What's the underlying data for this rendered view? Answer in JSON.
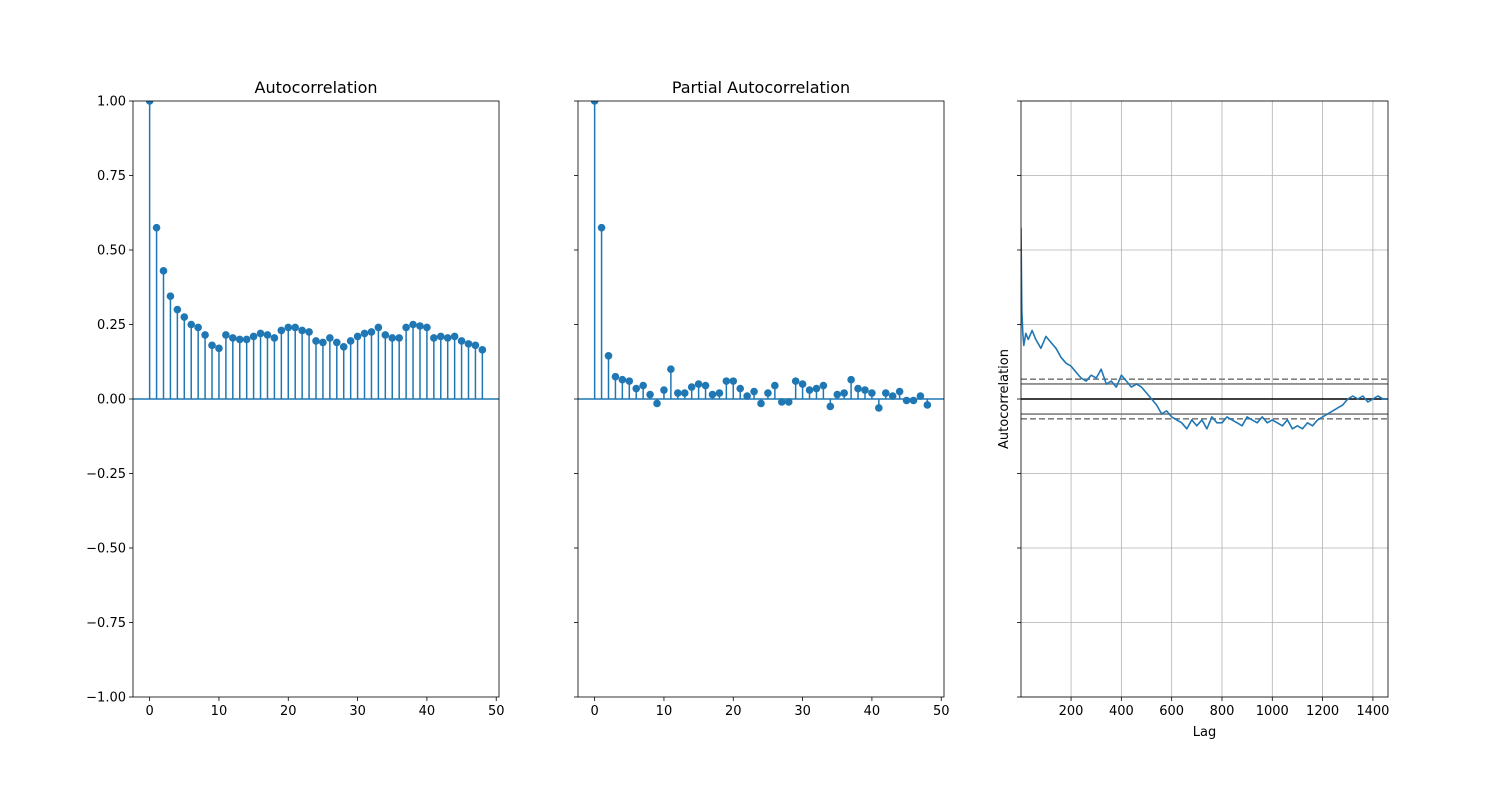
{
  "chart_data": [
    {
      "type": "stem",
      "title": "Autocorrelation",
      "xlabel": "",
      "ylabel": "",
      "xlim": [
        -2.4,
        50.4
      ],
      "ylim": [
        -1.0,
        1.0
      ],
      "xticks": [
        "0",
        "10",
        "20",
        "30",
        "40",
        "50"
      ],
      "yticks": [
        "−1.00",
        "−0.75",
        "−0.50",
        "−0.25",
        "0.00",
        "0.25",
        "0.50",
        "0.75",
        "1.00"
      ],
      "color": "#1f77b4",
      "x": [
        0,
        1,
        2,
        3,
        4,
        5,
        6,
        7,
        8,
        9,
        10,
        11,
        12,
        13,
        14,
        15,
        16,
        17,
        18,
        19,
        20,
        21,
        22,
        23,
        24,
        25,
        26,
        27,
        28,
        29,
        30,
        31,
        32,
        33,
        34,
        35,
        36,
        37,
        38,
        39,
        40,
        41,
        42,
        43,
        44,
        45,
        46,
        47,
        48
      ],
      "values": [
        1.0,
        0.575,
        0.43,
        0.345,
        0.3,
        0.275,
        0.25,
        0.24,
        0.215,
        0.18,
        0.17,
        0.215,
        0.205,
        0.2,
        0.2,
        0.21,
        0.22,
        0.215,
        0.205,
        0.23,
        0.24,
        0.24,
        0.23,
        0.225,
        0.195,
        0.19,
        0.205,
        0.19,
        0.175,
        0.195,
        0.21,
        0.22,
        0.225,
        0.24,
        0.215,
        0.205,
        0.205,
        0.24,
        0.25,
        0.245,
        0.24,
        0.205,
        0.21,
        0.205,
        0.21,
        0.195,
        0.185,
        0.18,
        0.165
      ]
    },
    {
      "type": "stem",
      "title": "Partial Autocorrelation",
      "xlabel": "",
      "ylabel": "",
      "xlim": [
        -2.4,
        50.4
      ],
      "ylim": [
        -1.0,
        1.0
      ],
      "xticks": [
        "0",
        "10",
        "20",
        "30",
        "40",
        "50"
      ],
      "color": "#1f77b4",
      "x": [
        0,
        1,
        2,
        3,
        4,
        5,
        6,
        7,
        8,
        9,
        10,
        11,
        12,
        13,
        14,
        15,
        16,
        17,
        18,
        19,
        20,
        21,
        22,
        23,
        24,
        25,
        26,
        27,
        28,
        29,
        30,
        31,
        32,
        33,
        34,
        35,
        36,
        37,
        38,
        39,
        40,
        41,
        42,
        43,
        44,
        45,
        46,
        47,
        48
      ],
      "values": [
        1.0,
        0.575,
        0.145,
        0.075,
        0.065,
        0.06,
        0.035,
        0.045,
        0.015,
        -0.015,
        0.03,
        0.1,
        0.02,
        0.02,
        0.04,
        0.05,
        0.045,
        0.015,
        0.02,
        0.06,
        0.06,
        0.035,
        0.01,
        0.025,
        -0.015,
        0.02,
        0.045,
        -0.01,
        -0.01,
        0.06,
        0.05,
        0.03,
        0.035,
        0.045,
        -0.025,
        0.015,
        0.02,
        0.065,
        0.035,
        0.03,
        0.02,
        -0.03,
        0.02,
        0.01,
        0.025,
        -0.005,
        -0.005,
        0.01,
        -0.02
      ]
    },
    {
      "type": "line",
      "title": "",
      "xlabel": "Lag",
      "ylabel": "Autocorrelation",
      "xlim": [
        1,
        1460
      ],
      "ylim": [
        -1.0,
        1.0
      ],
      "xticks": [
        "200",
        "400",
        "600",
        "800",
        "1000",
        "1200",
        "1400"
      ],
      "grid": true,
      "color": "#1f77b4",
      "confidence_lines": [
        0.0665,
        0.0506,
        0.0,
        -0.0506,
        -0.0665
      ],
      "series": [
        {
          "x": [
            1,
            4,
            8,
            12,
            20,
            30,
            45,
            60,
            80,
            100,
            120,
            140,
            160,
            180,
            200,
            220,
            240,
            260,
            280,
            300,
            320,
            340,
            360,
            380,
            400,
            420,
            440,
            460,
            480,
            500,
            520,
            540,
            560,
            580,
            600,
            620,
            640,
            660,
            680,
            700,
            720,
            740,
            760,
            780,
            800,
            820,
            840,
            860,
            880,
            900,
            920,
            940,
            960,
            980,
            1000,
            1020,
            1040,
            1060,
            1080,
            1100,
            1120,
            1140,
            1160,
            1180,
            1200,
            1220,
            1240,
            1260,
            1280,
            1300,
            1320,
            1340,
            1360,
            1380,
            1400,
            1420,
            1440,
            1460
          ],
          "values": [
            0.575,
            0.3,
            0.22,
            0.18,
            0.22,
            0.2,
            0.23,
            0.2,
            0.17,
            0.21,
            0.19,
            0.17,
            0.14,
            0.12,
            0.11,
            0.09,
            0.07,
            0.06,
            0.08,
            0.07,
            0.1,
            0.05,
            0.06,
            0.04,
            0.08,
            0.06,
            0.04,
            0.05,
            0.04,
            0.02,
            0.0,
            -0.02,
            -0.05,
            -0.04,
            -0.06,
            -0.07,
            -0.08,
            -0.1,
            -0.07,
            -0.09,
            -0.07,
            -0.1,
            -0.06,
            -0.08,
            -0.08,
            -0.06,
            -0.07,
            -0.08,
            -0.09,
            -0.06,
            -0.07,
            -0.08,
            -0.06,
            -0.08,
            -0.07,
            -0.08,
            -0.09,
            -0.07,
            -0.1,
            -0.09,
            -0.1,
            -0.08,
            -0.09,
            -0.07,
            -0.06,
            -0.05,
            -0.04,
            -0.03,
            -0.02,
            0.0,
            0.01,
            0.0,
            0.01,
            -0.01,
            0.0,
            0.01,
            0.0,
            0.0
          ]
        }
      ]
    }
  ]
}
